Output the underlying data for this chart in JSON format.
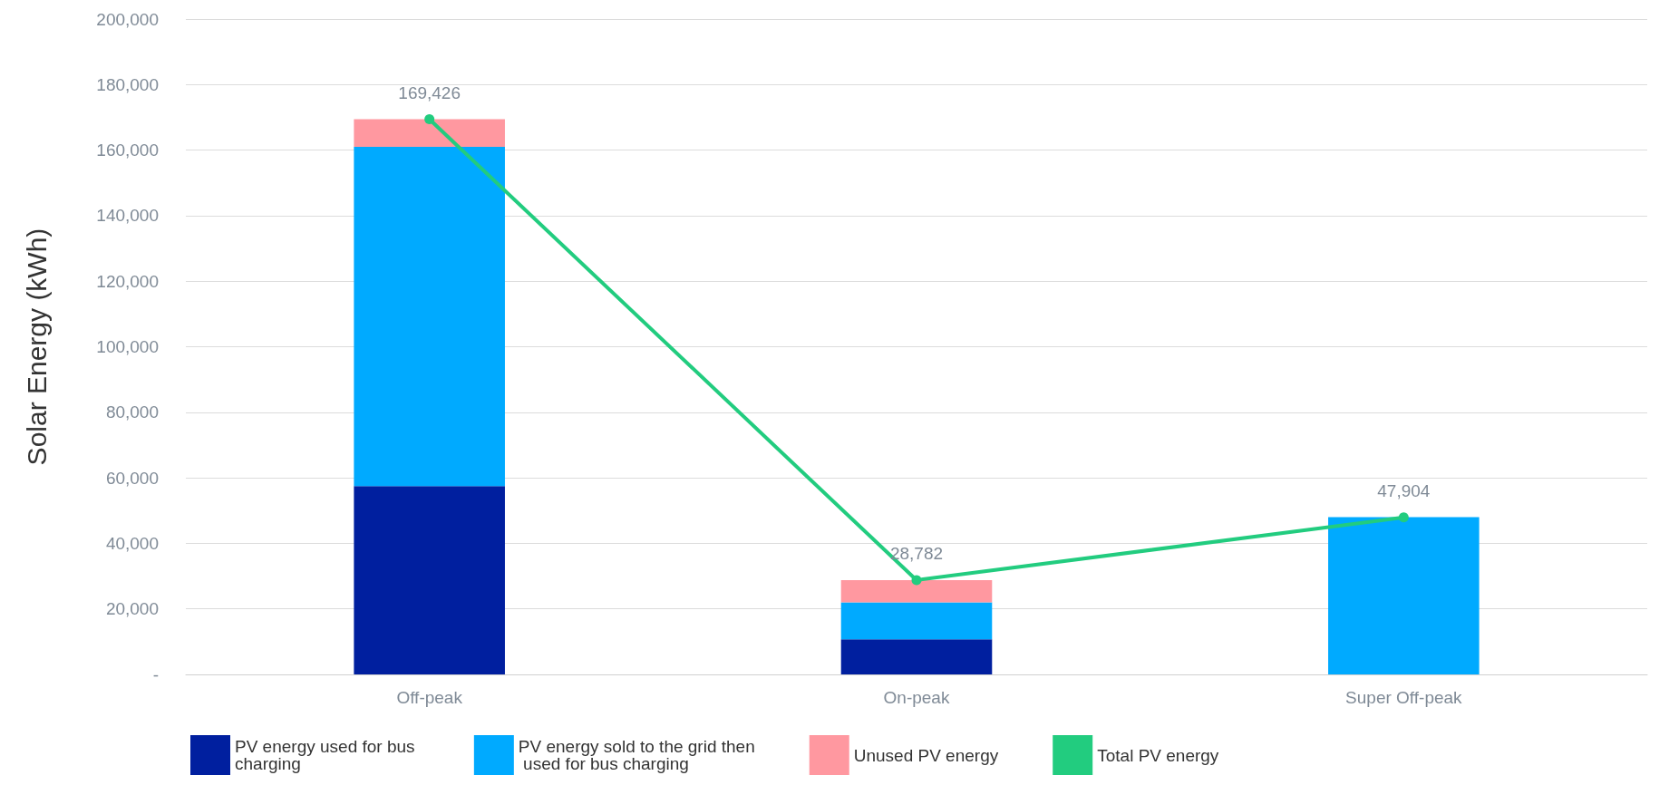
{
  "chart_data": {
    "type": "bar",
    "ylabel": "Solar Energy (kWh)",
    "stacked": true,
    "categories": [
      "Off-peak",
      "On-peak",
      "Super Off-peak"
    ],
    "series": [
      {
        "name": "PV energy used for bus charging",
        "color": "#001f9f",
        "values": [
          57500,
          10700,
          null
        ]
      },
      {
        "name": "PV energy sold to the grid then used for bus charging",
        "color": "#00aaff",
        "values": [
          103500,
          11300,
          48000
        ]
      },
      {
        "name": "Unused PV energy",
        "color": "#ff98a0",
        "values": [
          8400,
          6800,
          null
        ]
      },
      {
        "name": "Total PV energy",
        "type": "line",
        "color": "#22cc7f",
        "marker": "circle",
        "values": [
          169426,
          28782,
          47904
        ],
        "value_labels": [
          "169,426",
          "28,782",
          "47,904"
        ]
      }
    ],
    "ylim": [
      0,
      200000
    ],
    "yticks": [
      {
        "value": 0,
        "label": "-"
      },
      {
        "value": 20000,
        "label": "20,000"
      },
      {
        "value": 40000,
        "label": "40,000"
      },
      {
        "value": 60000,
        "label": "60,000"
      },
      {
        "value": 80000,
        "label": "80,000"
      },
      {
        "value": 100000,
        "label": "100,000"
      },
      {
        "value": 120000,
        "label": "120,000"
      },
      {
        "value": 140000,
        "label": "140,000"
      },
      {
        "value": 160000,
        "label": "160,000"
      },
      {
        "value": 180000,
        "label": "180,000"
      },
      {
        "value": 200000,
        "label": "200,000"
      }
    ],
    "grid": "y",
    "legend": "bottom"
  }
}
